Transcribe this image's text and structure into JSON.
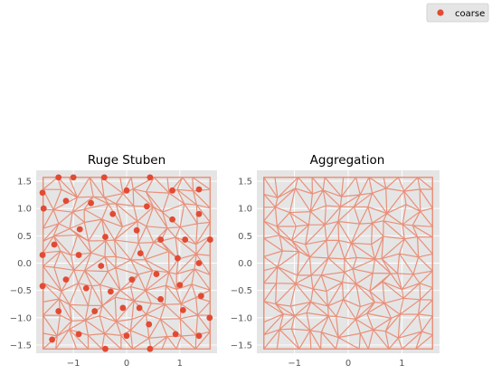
{
  "legend": {
    "label": "coarse",
    "marker_color": "#E24A33"
  },
  "chart_data": [
    {
      "type": "mesh",
      "title": "Ruge Stuben",
      "xlim": [
        -1.7,
        1.7
      ],
      "ylim": [
        -1.65,
        1.7
      ],
      "xticks": [
        -1,
        0,
        1
      ],
      "xtick_labels": [
        "−1",
        "0",
        "1"
      ],
      "yticks": [
        1.5,
        1.0,
        0.5,
        0.0,
        -0.5,
        -1.0,
        -1.5
      ],
      "ytick_labels": [
        "1.5",
        "1.0",
        "0.5",
        "0.0",
        "−0.5",
        "−1.0",
        "−1.5"
      ],
      "grid": true,
      "background": "#E5E5E5",
      "mesh_color": "#E8907A",
      "coarse_color": "#E24A33",
      "coarse_points": [
        [
          -1.28,
          1.57
        ],
        [
          -1.0,
          1.57
        ],
        [
          -0.42,
          1.57
        ],
        [
          0.44,
          1.57
        ],
        [
          -1.58,
          1.29
        ],
        [
          -1.14,
          1.14
        ],
        [
          -0.67,
          1.1
        ],
        [
          0.0,
          1.33
        ],
        [
          0.86,
          1.33
        ],
        [
          1.36,
          1.35
        ],
        [
          -1.56,
          1.0
        ],
        [
          -0.26,
          0.9
        ],
        [
          0.38,
          1.04
        ],
        [
          1.36,
          0.9
        ],
        [
          -0.88,
          0.62
        ],
        [
          0.19,
          0.6
        ],
        [
          0.86,
          0.8
        ],
        [
          -1.36,
          0.34
        ],
        [
          -0.4,
          0.48
        ],
        [
          0.64,
          0.43
        ],
        [
          1.1,
          0.43
        ],
        [
          1.57,
          0.43
        ],
        [
          -1.58,
          0.15
        ],
        [
          -0.9,
          0.15
        ],
        [
          0.26,
          0.18
        ],
        [
          0.96,
          0.09
        ],
        [
          -0.48,
          -0.05
        ],
        [
          1.36,
          0.0
        ],
        [
          -1.14,
          -0.3
        ],
        [
          0.1,
          -0.3
        ],
        [
          0.56,
          -0.2
        ],
        [
          -1.58,
          -0.42
        ],
        [
          -0.76,
          -0.46
        ],
        [
          1.0,
          -0.4
        ],
        [
          -0.3,
          -0.52
        ],
        [
          0.64,
          -0.66
        ],
        [
          1.4,
          -0.6
        ],
        [
          -1.28,
          -0.88
        ],
        [
          -0.6,
          -0.88
        ],
        [
          -0.07,
          -0.82
        ],
        [
          0.24,
          -0.82
        ],
        [
          1.06,
          -0.86
        ],
        [
          1.56,
          -1.0
        ],
        [
          0.42,
          -1.12
        ],
        [
          -0.9,
          -1.3
        ],
        [
          0.0,
          -1.33
        ],
        [
          0.92,
          -1.3
        ],
        [
          1.36,
          -1.33
        ],
        [
          -1.4,
          -1.4
        ],
        [
          -0.4,
          -1.57
        ],
        [
          0.44,
          -1.57
        ]
      ]
    },
    {
      "type": "mesh",
      "title": "Aggregation",
      "xlim": [
        -1.7,
        1.7
      ],
      "ylim": [
        -1.65,
        1.7
      ],
      "xticks": [
        -1,
        0,
        1
      ],
      "xtick_labels": [
        "−1",
        "0",
        "1"
      ],
      "yticks": [
        1.5,
        1.0,
        0.5,
        0.0,
        -0.5,
        -1.0,
        -1.5
      ],
      "ytick_labels": [
        "1.5",
        "1.0",
        "0.5",
        "0.0",
        "−0.5",
        "−1.0",
        "−1.5"
      ],
      "grid": true,
      "background": "#E5E5E5",
      "mesh_color": "#E8907A"
    }
  ]
}
